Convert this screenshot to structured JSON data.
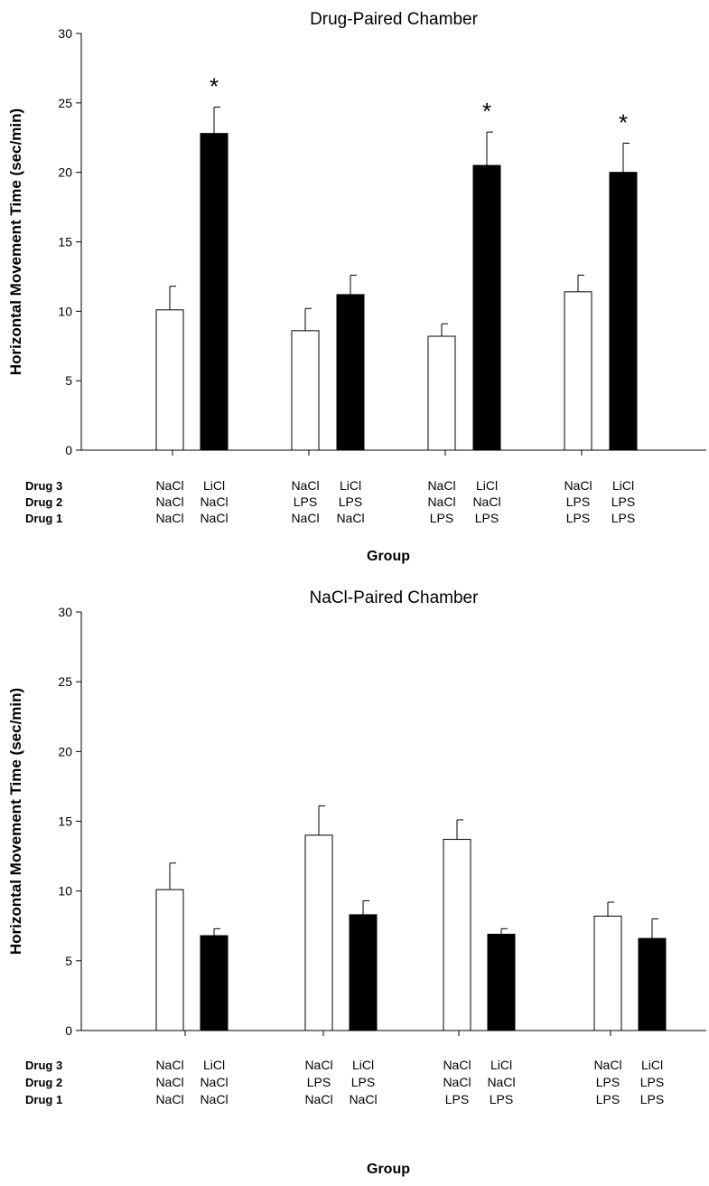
{
  "chart_data": [
    {
      "type": "bar",
      "title": "Drug-Paired Chamber",
      "xlabel": "Group",
      "ylabel": "Horizontal Movement Time (sec/min)",
      "ylim": [
        0,
        30
      ],
      "yticks": [
        0,
        5,
        10,
        15,
        20,
        25,
        30
      ],
      "row_labels": [
        "Drug 3",
        "Drug 2",
        "Drug 1"
      ],
      "groups": [
        {
          "bars": [
            {
              "value": 10.1,
              "error": 1.7,
              "fill": "white",
              "labels": [
                "NaCl",
                "NaCl",
                "NaCl"
              ],
              "star": ""
            },
            {
              "value": 22.8,
              "error": 1.9,
              "fill": "black",
              "labels": [
                "LiCl",
                "NaCl",
                "NaCl"
              ],
              "star": "*"
            }
          ]
        },
        {
          "bars": [
            {
              "value": 8.6,
              "error": 1.6,
              "fill": "white",
              "labels": [
                "NaCl",
                "LPS",
                "NaCl"
              ],
              "star": ""
            },
            {
              "value": 11.2,
              "error": 1.4,
              "fill": "black",
              "labels": [
                "LiCl",
                "LPS",
                "NaCl"
              ],
              "star": ""
            }
          ]
        },
        {
          "bars": [
            {
              "value": 8.2,
              "error": 0.9,
              "fill": "white",
              "labels": [
                "NaCl",
                "NaCl",
                "LPS"
              ],
              "star": ""
            },
            {
              "value": 20.5,
              "error": 2.4,
              "fill": "black",
              "labels": [
                "LiCl",
                "NaCl",
                "LPS"
              ],
              "star": "*"
            }
          ]
        },
        {
          "bars": [
            {
              "value": 11.4,
              "error": 1.2,
              "fill": "white",
              "labels": [
                "NaCl",
                "LPS",
                "LPS"
              ],
              "star": ""
            },
            {
              "value": 20.0,
              "error": 2.1,
              "fill": "black",
              "labels": [
                "LiCl",
                "LPS",
                "LPS"
              ],
              "star": "*"
            }
          ]
        }
      ]
    },
    {
      "type": "bar",
      "title": "NaCl-Paired Chamber",
      "xlabel": "Group",
      "ylabel": "Horizontal Movement Time (sec/min)",
      "ylim": [
        0,
        30
      ],
      "yticks": [
        0,
        5,
        10,
        15,
        20,
        25,
        30
      ],
      "row_labels": [
        "Drug 3",
        "Drug 2",
        "Drug 1"
      ],
      "groups": [
        {
          "bars": [
            {
              "value": 10.1,
              "error": 1.9,
              "fill": "white",
              "labels": [
                "NaCl",
                "NaCl",
                "NaCl"
              ],
              "star": ""
            },
            {
              "value": 6.8,
              "error": 0.5,
              "fill": "black",
              "labels": [
                "LiCl",
                "NaCl",
                "NaCl"
              ],
              "star": ""
            }
          ]
        },
        {
          "bars": [
            {
              "value": 14.0,
              "error": 2.1,
              "fill": "white",
              "labels": [
                "NaCl",
                "LPS",
                "NaCl"
              ],
              "star": ""
            },
            {
              "value": 8.3,
              "error": 1.0,
              "fill": "black",
              "labels": [
                "LiCl",
                "LPS",
                "NaCl"
              ],
              "star": ""
            }
          ]
        },
        {
          "bars": [
            {
              "value": 13.7,
              "error": 1.4,
              "fill": "white",
              "labels": [
                "NaCl",
                "NaCl",
                "LPS"
              ],
              "star": ""
            },
            {
              "value": 6.9,
              "error": 0.4,
              "fill": "black",
              "labels": [
                "LiCl",
                "NaCl",
                "LPS"
              ],
              "star": ""
            }
          ]
        },
        {
          "bars": [
            {
              "value": 8.2,
              "error": 1.0,
              "fill": "white",
              "labels": [
                "NaCl",
                "LPS",
                "LPS"
              ],
              "star": ""
            },
            {
              "value": 6.6,
              "error": 1.4,
              "fill": "black",
              "labels": [
                "LiCl",
                "LPS",
                "LPS"
              ],
              "star": ""
            }
          ]
        }
      ]
    }
  ]
}
